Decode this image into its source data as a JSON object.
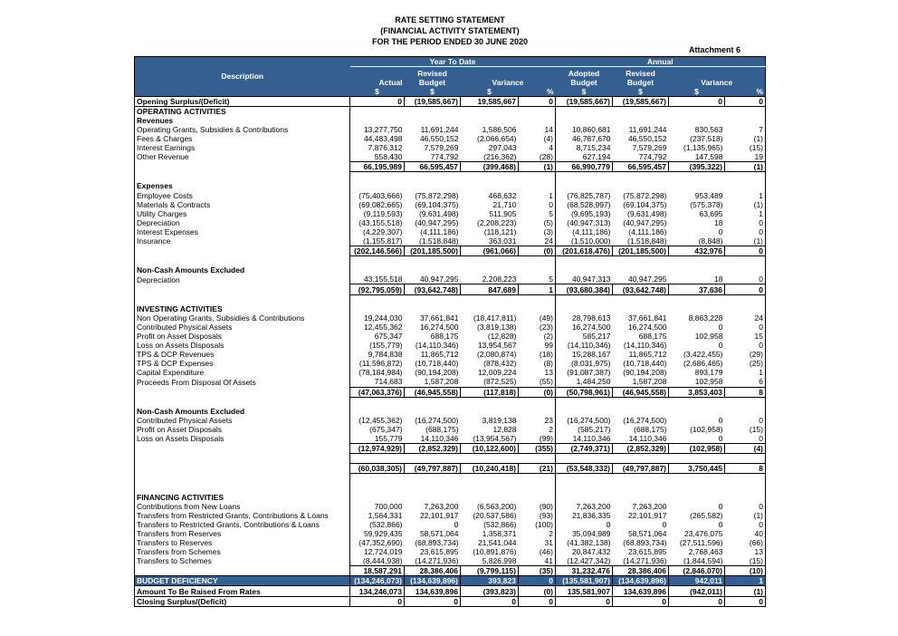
{
  "header": {
    "title": [
      "RATE SETTING STATEMENT",
      "(FINANCIAL ACTIVITY STATEMENT)",
      "FOR THE PERIOD ENDED 30 JUNE 2020"
    ],
    "attachment": "Attachment 6"
  },
  "table": {
    "groups": [
      "Year To Date",
      "Annual"
    ],
    "columns": [
      "Description",
      "Actual",
      "Revised Budget",
      "Variance",
      "Adopted Budget",
      "Revised Budget",
      "Variance"
    ],
    "units": [
      "$",
      "$",
      "$",
      "%",
      "$",
      "$",
      "$",
      "%"
    ],
    "rows": [
      {
        "label": "Opening Surplus/(Deficit)",
        "values": [
          "0",
          "(19,585,667)",
          "19,585,667",
          "0",
          "(19,585,667)",
          "(19,585,667)",
          "0",
          "0"
        ],
        "bold": true,
        "boxed": true
      },
      {
        "label": "OPERATING ACTIVITIES",
        "bold": true
      },
      {
        "label": "Revenues",
        "bold": true
      },
      {
        "label": "Operating Grants, Subsidies & Contributions",
        "values": [
          "13,277,750",
          "11,691,244",
          "1,586,506",
          "14",
          "10,860,681",
          "11,691,244",
          "830,563",
          "7"
        ]
      },
      {
        "label": "Fees & Charges",
        "values": [
          "44,483,498",
          "46,550,152",
          "(2,066,654)",
          "(4)",
          "46,787,670",
          "46,550,152",
          "(237,518)",
          "(1)"
        ]
      },
      {
        "label": "Interest Earnings",
        "values": [
          "7,876,312",
          "7,579,269",
          "297,043",
          "4",
          "8,715,234",
          "7,579,269",
          "(1,135,965)",
          "(15)"
        ]
      },
      {
        "label": "Other Revenue",
        "values": [
          "558,430",
          "774,792",
          "(216,362)",
          "(28)",
          "627,194",
          "774,792",
          "147,598",
          "19"
        ]
      },
      {
        "values": [
          "66,195,989",
          "66,595,457",
          "(399,468)",
          "(1)",
          "66,990,779",
          "66,595,457",
          "(395,322)",
          "(1)"
        ],
        "bold": true
      },
      null,
      {
        "label": "Expenses",
        "bold": true
      },
      {
        "label": "Employee Costs",
        "values": [
          "(75,403,666)",
          "(75,872,298)",
          "468,632",
          "1",
          "(76,825,787)",
          "(75,872,298)",
          "953,489",
          "1"
        ]
      },
      {
        "label": "Materials & Contracts",
        "values": [
          "(69,082,665)",
          "(69,104,375)",
          "21,710",
          "0",
          "(68,528,997)",
          "(69,104,375)",
          "(575,378)",
          "(1)"
        ]
      },
      {
        "label": "Utility Charges",
        "values": [
          "(9,119,593)",
          "(9,631,498)",
          "511,905",
          "5",
          "(9,695,193)",
          "(9,631,498)",
          "63,695",
          "1"
        ]
      },
      {
        "label": "Depreciation",
        "values": [
          "(43,155,518)",
          "(40,947,295)",
          "(2,208,223)",
          "(5)",
          "(40,947,313)",
          "(40,947,295)",
          "18",
          "0"
        ]
      },
      {
        "label": "Interest Expenses",
        "values": [
          "(4,229,307)",
          "(4,111,186)",
          "(118,121)",
          "(3)",
          "(4,111,186)",
          "(4,111,186)",
          "0",
          "0"
        ]
      },
      {
        "label": "Insurance",
        "values": [
          "(1,155,817)",
          "(1,518,848)",
          "363,031",
          "24",
          "(1,510,000)",
          "(1,518,848)",
          "(8,848)",
          "(1)"
        ]
      },
      {
        "values": [
          "(202,146,566)",
          "(201,185,500)",
          "(961,066)",
          "(0)",
          "(201,618,476)",
          "(201,185,500)",
          "432,976",
          "0"
        ],
        "bold": true
      },
      null,
      {
        "label": "Non-Cash Amounts Excluded",
        "bold": true
      },
      {
        "label": "Depreciation",
        "values": [
          "43,155,518",
          "40,947,295",
          "2,208,223",
          "5",
          "40,947,313",
          "40,947,295",
          "18",
          "0"
        ]
      },
      {
        "values": [
          "(92,795,059)",
          "(93,642,748)",
          "847,689",
          "1",
          "(93,680,384)",
          "(93,642,748)",
          "37,636",
          "0"
        ],
        "bold": true
      },
      null,
      {
        "label": "INVESTING ACTIVITIES",
        "bold": true
      },
      {
        "label": "Non Operating Grants, Subsidies & Contributions",
        "values": [
          "19,244,030",
          "37,661,841",
          "(18,417,811)",
          "(49)",
          "28,798,613",
          "37,661,841",
          "8,863,228",
          "24"
        ]
      },
      {
        "label": "Contributed Physical Assets",
        "values": [
          "12,455,362",
          "16,274,500",
          "(3,819,138)",
          "(23)",
          "16,274,500",
          "16,274,500",
          "0",
          "0"
        ]
      },
      {
        "label": "Profit on Asset Disposals",
        "values": [
          "675,347",
          "688,175",
          "(12,828)",
          "(2)",
          "585,217",
          "688,175",
          "102,958",
          "15"
        ]
      },
      {
        "label": "Loss on Assets Disposals",
        "values": [
          "(155,779)",
          "(14,110,346)",
          "13,954,567",
          "99",
          "(14,110,346)",
          "(14,110,346)",
          "0",
          "0"
        ]
      },
      {
        "label": "TPS & DCP Revenues",
        "values": [
          "9,784,838",
          "11,865,712",
          "(2,080,874)",
          "(18)",
          "15,288,167",
          "11,865,712",
          "(3,422,455)",
          "(29)"
        ]
      },
      {
        "label": "TPS & DCP Expenses",
        "values": [
          "(11,596,872)",
          "(10,718,440)",
          "(878,432)",
          "(8)",
          "(8,031,975)",
          "(10,718,440)",
          "(2,686,465)",
          "(25)"
        ]
      },
      {
        "label": "Capital Expenditure",
        "values": [
          "(78,184,984)",
          "(90,194,208)",
          "12,009,224",
          "13",
          "(91,087,387)",
          "(90,194,208)",
          "893,179",
          "1"
        ]
      },
      {
        "label": "Proceeds From Disposal Of Assets",
        "values": [
          "714,683",
          "1,587,208",
          "(872,525)",
          "(55)",
          "1,484,250",
          "1,587,208",
          "102,958",
          "6"
        ]
      },
      {
        "values": [
          "(47,063,376)",
          "(46,945,558)",
          "(117,818)",
          "(0)",
          "(50,798,961)",
          "(46,945,558)",
          "3,853,403",
          "8"
        ],
        "bold": true
      },
      null,
      {
        "label": "Non-Cash Amounts Excluded",
        "bold": true
      },
      {
        "label": "Contributed Physical Assets",
        "values": [
          "(12,455,362)",
          "(16,274,500)",
          "3,819,138",
          "23",
          "(16,274,500)",
          "(16,274,500)",
          "0",
          "0"
        ]
      },
      {
        "label": "Profit on Asset Disposals",
        "values": [
          "(675,347)",
          "(688,175)",
          "12,828",
          "2",
          "(585,217)",
          "(688,175)",
          "(102,958)",
          "(15)"
        ]
      },
      {
        "label": "Loss on Assets Disposals",
        "values": [
          "155,779",
          "14,110,346",
          "(13,954,567)",
          "(99)",
          "14,110,346",
          "14,110,346",
          "0",
          "0"
        ]
      },
      {
        "values": [
          "(12,974,929)",
          "(2,852,329)",
          "(10,122,600)",
          "(355)",
          "(2,749,371)",
          "(2,852,329)",
          "(102,958)",
          "(4)"
        ],
        "bold": true
      },
      null,
      {
        "values": [
          "(60,038,305)",
          "(49,797,887)",
          "(10,240,418)",
          "(21)",
          "(53,548,332)",
          "(49,797,887)",
          "3,750,445",
          "8"
        ],
        "bold": true
      },
      null,
      null,
      {
        "label": "FINANCING ACTIVITIES",
        "bold": true
      },
      {
        "label": "Contributions from New Loans",
        "values": [
          "700,000",
          "7,263,200",
          "(6,563,200)",
          "(90)",
          "7,263,200",
          "7,263,200",
          "0",
          "0"
        ]
      },
      {
        "label": "Transfers from Restricted Grants, Contributions & Loans",
        "values": [
          "1,564,331",
          "22,101,917",
          "(20,537,586)",
          "(93)",
          "21,836,335",
          "22,101,917",
          "(265,582)",
          "(1)"
        ]
      },
      {
        "label": "Transfers to Restricted Grants, Contributions & Loans",
        "values": [
          "(532,866)",
          "0",
          "(532,866)",
          "(100)",
          "0",
          "0",
          "0",
          "0"
        ]
      },
      {
        "label": "Transfers from Reserves",
        "values": [
          "59,929,435",
          "58,571,064",
          "1,358,371",
          "2",
          "35,094,989",
          "58,571,064",
          "23,476,075",
          "40"
        ]
      },
      {
        "label": "Transfers to Reserves",
        "values": [
          "(47,352,690)",
          "(68,893,734)",
          "21,541,044",
          "31",
          "(41,382,138)",
          "(68,893,734)",
          "(27,511,596)",
          "(66)"
        ]
      },
      {
        "label": "Transfers from Schemes",
        "values": [
          "12,724,019",
          "23,615,895",
          "(10,891,876)",
          "(46)",
          "20,847,432",
          "23,615,895",
          "2,768,463",
          "13"
        ]
      },
      {
        "label": "Transfers to Schemes",
        "values": [
          "(8,444,938)",
          "(14,271,936)",
          "5,826,998",
          "41",
          "(12,427,342)",
          "(14,271,936)",
          "(1,844,594)",
          "(15)"
        ]
      },
      {
        "values": [
          "18,587,291",
          "28,386,406",
          "(9,799,115)",
          "(35)",
          "31,232,476",
          "28,386,406",
          "(2,846,070)",
          "(10)"
        ],
        "bold": true
      },
      {
        "label": "BUDGET DEFICIENCY",
        "values": [
          "(134,246,073)",
          "(134,639,896)",
          "393,823",
          "0",
          "(135,581,907)",
          "(134,639,896)",
          "942,011",
          "1"
        ],
        "bold": true,
        "highlight": true
      },
      {
        "label": "Amount To Be Raised From Rates",
        "values": [
          "134,246,073",
          "134,639,896",
          "(393,823)",
          "(0)",
          "135,581,907",
          "134,639,896",
          "(942,011)",
          "(1)"
        ],
        "bold": true,
        "boxed": true
      },
      {
        "label": "Closing Surplus/(Deficit)",
        "values": [
          "0",
          "0",
          "0",
          "0",
          "0",
          "0",
          "0",
          "0"
        ],
        "bold": true,
        "boxed": true
      }
    ]
  }
}
